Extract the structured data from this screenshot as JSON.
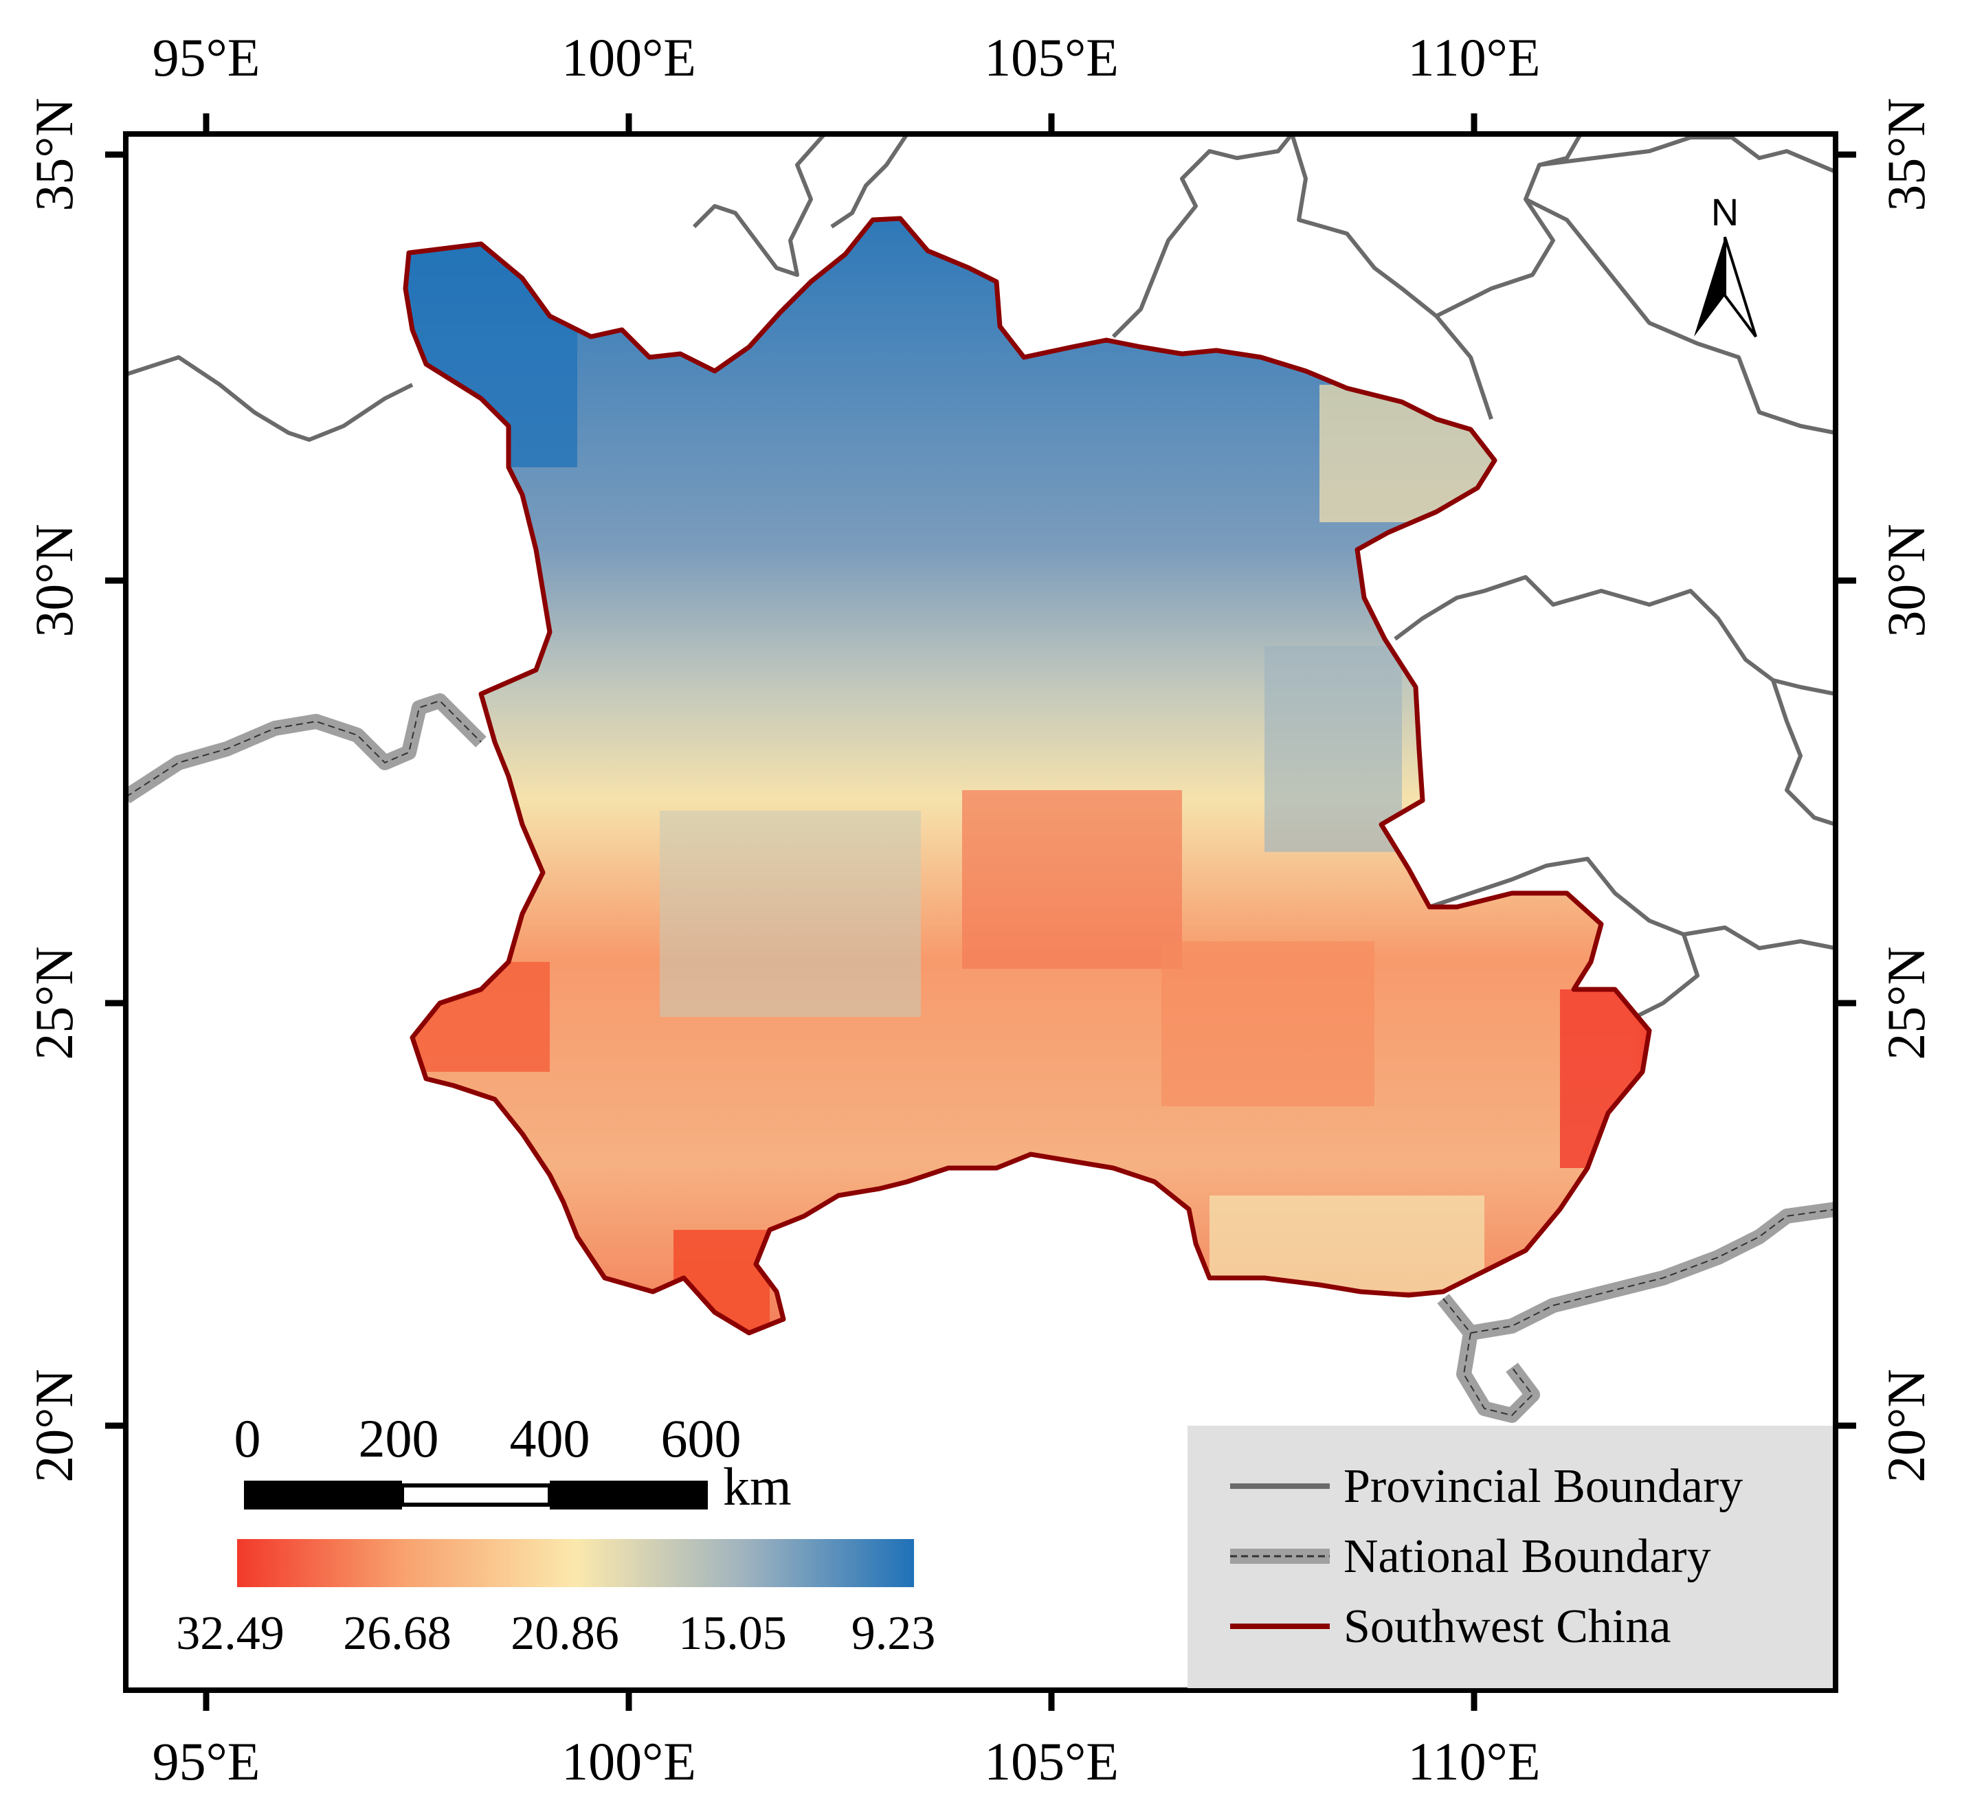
{
  "axes": {
    "lon_labels": [
      "95°E",
      "100°E",
      "105°E",
      "110°E"
    ],
    "lat_labels": [
      "35°N",
      "30°N",
      "25°N",
      "20°N"
    ]
  },
  "north_arrow": {
    "label": "N",
    "icon": "north-arrow-icon"
  },
  "scale_bar": {
    "labels": [
      "0",
      "200",
      "400",
      "600"
    ],
    "unit": "km"
  },
  "color_bar": {
    "labels": [
      "32.49",
      "26.68",
      "20.86",
      "15.05",
      "9.23"
    ],
    "colors": [
      "#f23a2a",
      "#f8a370",
      "#fbe8ac",
      "#9fb3bf",
      "#1f71b8"
    ],
    "range": [
      32.49,
      9.23
    ]
  },
  "legend": {
    "items": [
      {
        "label": "Provincial Boundary",
        "color": "#6a6a6a"
      },
      {
        "label": "National Boundary",
        "color": "#a0a0a0"
      },
      {
        "label": "Southwest China",
        "color": "#8b0000"
      }
    ],
    "background": "#e0e0e0"
  }
}
